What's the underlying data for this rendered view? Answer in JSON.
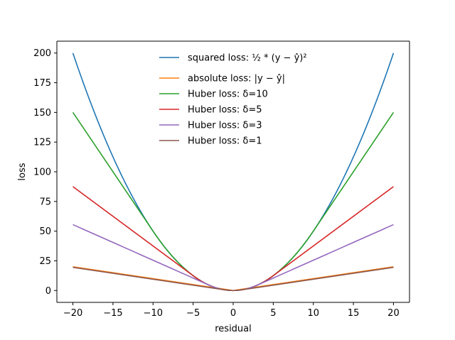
{
  "chart_data": {
    "type": "line",
    "title": "",
    "xlabel": "residual",
    "ylabel": "loss",
    "xlim": [
      -22,
      22
    ],
    "ylim": [
      -10,
      210
    ],
    "x_ticks": [
      -20,
      -15,
      -10,
      -5,
      0,
      5,
      10,
      15,
      20
    ],
    "x_tick_labels": [
      "−20",
      "−15",
      "−10",
      "−5",
      "0",
      "5",
      "10",
      "15",
      "20"
    ],
    "y_ticks": [
      0,
      25,
      50,
      75,
      100,
      125,
      150,
      175,
      200
    ],
    "y_tick_labels": [
      "0",
      "25",
      "50",
      "75",
      "100",
      "125",
      "150",
      "175",
      "200"
    ],
    "grid": false,
    "legend_position": "top-center",
    "x_range": [
      -20,
      20
    ],
    "series": [
      {
        "name": "squared loss: ½ * (y − ŷ)²",
        "loss": "squared",
        "color": "#1f77b4"
      },
      {
        "name": "absolute loss: |y − ŷ|",
        "loss": "absolute",
        "color": "#ff7f0e"
      },
      {
        "name": "Huber loss: δ=10",
        "loss": "huber",
        "delta": 10,
        "color": "#2ca02c"
      },
      {
        "name": "Huber loss: δ=5",
        "loss": "huber",
        "delta": 5,
        "color": "#d62728"
      },
      {
        "name": "Huber loss: δ=3",
        "loss": "huber",
        "delta": 3,
        "color": "#9467bd"
      },
      {
        "name": "Huber loss: δ=1",
        "loss": "huber",
        "delta": 1,
        "color": "#8c564b"
      }
    ]
  }
}
